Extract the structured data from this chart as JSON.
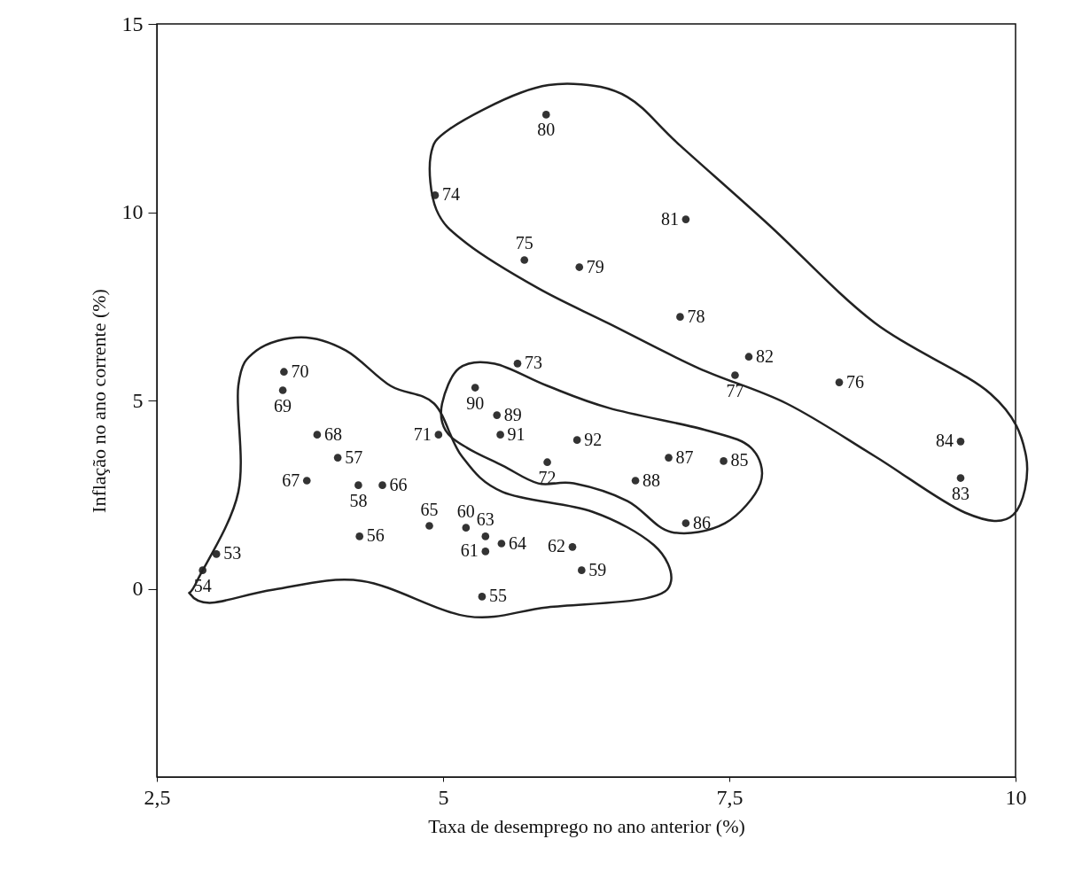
{
  "chart_data": {
    "type": "scatter",
    "xlabel": "Taxa de desemprego no ano anterior (%)",
    "ylabel": "Inflação no ano corrente (%)",
    "xlim": [
      2.5,
      10
    ],
    "xticks": [
      {
        "value": 2.5,
        "label": "2,5"
      },
      5,
      {
        "value": 7.5,
        "label": "7,5"
      },
      10
    ],
    "ylim": [
      -5,
      15
    ],
    "yticks": [
      0,
      5,
      10,
      15
    ],
    "grid": false,
    "marker": "circle",
    "series": [
      {
        "color": "#333333",
        "x": [
          2.9,
          3.02,
          5.34,
          4.27,
          4.08,
          4.26,
          6.21,
          5.2,
          5.37,
          6.13,
          5.37,
          5.51,
          4.88,
          4.47,
          3.81,
          3.9,
          3.6,
          3.61,
          4.96,
          5.91,
          5.65,
          4.93,
          5.71,
          8.46,
          7.55,
          7.07,
          6.19,
          5.9,
          7.12,
          7.67,
          9.52,
          9.52,
          7.45,
          7.12,
          6.97,
          6.68,
          5.47,
          5.28,
          5.5,
          6.17
        ],
        "values": [
          0.49,
          0.92,
          -0.21,
          1.39,
          3.48,
          2.75,
          0.49,
          1.62,
          0.99,
          1.11,
          1.39,
          1.2,
          1.67,
          2.75,
          2.87,
          4.09,
          5.27,
          5.76,
          4.09,
          3.36,
          5.98,
          10.45,
          8.73,
          5.48,
          5.67,
          7.22,
          8.54,
          12.59,
          9.81,
          6.16,
          2.94,
          3.91,
          3.39,
          1.74,
          3.48,
          2.87,
          4.61,
          5.34,
          4.09,
          3.95
        ]
      }
    ],
    "annotations": [
      {
        "text": "54",
        "x": 2.9,
        "y": 0.49
      },
      {
        "text": "53",
        "x": 3.02,
        "y": 0.92
      },
      {
        "text": "55",
        "x": 5.34,
        "y": -0.21
      },
      {
        "text": "56",
        "x": 4.27,
        "y": 1.39
      },
      {
        "text": "57",
        "x": 4.08,
        "y": 3.48
      },
      {
        "text": "58",
        "x": 4.26,
        "y": 2.75
      },
      {
        "text": "59",
        "x": 6.21,
        "y": 0.49
      },
      {
        "text": "60",
        "x": 5.2,
        "y": 1.62
      },
      {
        "text": "61",
        "x": 5.37,
        "y": 0.99
      },
      {
        "text": "62",
        "x": 6.13,
        "y": 1.11
      },
      {
        "text": "63",
        "x": 5.37,
        "y": 1.39
      },
      {
        "text": "64",
        "x": 5.51,
        "y": 1.2
      },
      {
        "text": "65",
        "x": 4.88,
        "y": 1.67
      },
      {
        "text": "66",
        "x": 4.47,
        "y": 2.75
      },
      {
        "text": "67",
        "x": 3.81,
        "y": 2.87
      },
      {
        "text": "68",
        "x": 3.9,
        "y": 4.09
      },
      {
        "text": "69",
        "x": 3.6,
        "y": 5.27
      },
      {
        "text": "70",
        "x": 3.61,
        "y": 5.76
      },
      {
        "text": "71",
        "x": 4.96,
        "y": 4.09
      },
      {
        "text": "72",
        "x": 5.91,
        "y": 3.36
      },
      {
        "text": "73",
        "x": 5.65,
        "y": 5.98
      },
      {
        "text": "74",
        "x": 4.93,
        "y": 10.45
      },
      {
        "text": "75",
        "x": 5.71,
        "y": 8.73
      },
      {
        "text": "76",
        "x": 8.46,
        "y": 5.48
      },
      {
        "text": "77",
        "x": 7.55,
        "y": 5.67
      },
      {
        "text": "78",
        "x": 7.07,
        "y": 7.22
      },
      {
        "text": "79",
        "x": 6.19,
        "y": 8.54
      },
      {
        "text": "80",
        "x": 5.9,
        "y": 12.59
      },
      {
        "text": "81",
        "x": 7.12,
        "y": 9.81
      },
      {
        "text": "82",
        "x": 7.67,
        "y": 6.16
      },
      {
        "text": "83",
        "x": 9.52,
        "y": 2.94
      },
      {
        "text": "84",
        "x": 9.52,
        "y": 3.91
      },
      {
        "text": "85",
        "x": 7.45,
        "y": 3.39
      },
      {
        "text": "86",
        "x": 7.12,
        "y": 1.74
      },
      {
        "text": "87",
        "x": 6.97,
        "y": 3.48
      },
      {
        "text": "88",
        "x": 6.68,
        "y": 2.87
      },
      {
        "text": "89",
        "x": 5.47,
        "y": 4.61
      },
      {
        "text": "90",
        "x": 5.28,
        "y": 5.34
      },
      {
        "text": "91",
        "x": 5.5,
        "y": 4.09
      },
      {
        "text": "92",
        "x": 6.17,
        "y": 3.95
      }
    ]
  }
}
